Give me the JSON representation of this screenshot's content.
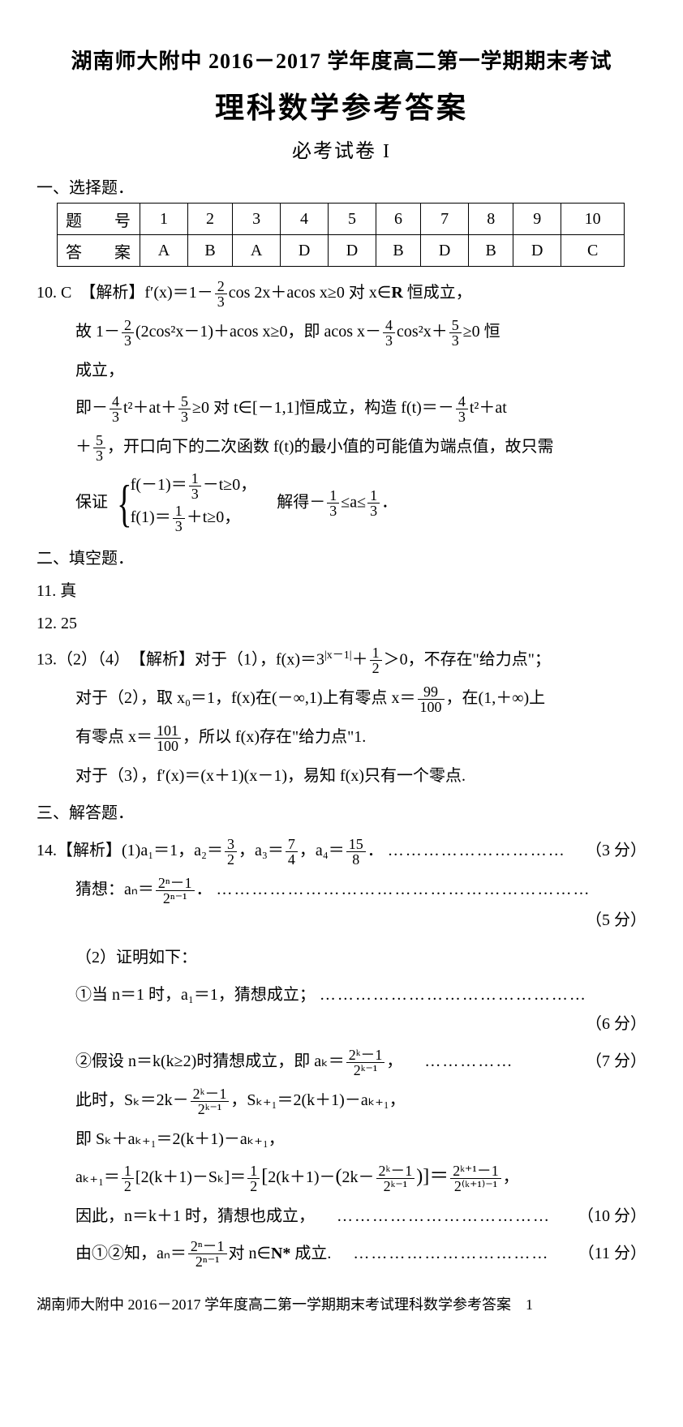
{
  "header": {
    "line1": "湖南师大附中 2016－2017 学年度高二第一学期期末考试",
    "line2": "理科数学参考答案",
    "line3": "必考试卷 I"
  },
  "sec1": {
    "title": "一、选择题．"
  },
  "table": {
    "head_label": "题　号",
    "ans_label": "答　案",
    "nums": [
      "1",
      "2",
      "3",
      "4",
      "5",
      "6",
      "7",
      "8",
      "9",
      "10"
    ],
    "answers": [
      "A",
      "B",
      "A",
      "D",
      "D",
      "B",
      "D",
      "B",
      "D",
      "C"
    ]
  },
  "q10": {
    "label": "10. C　【解析】",
    "l1a": "f′(x)＝1－",
    "f1n": "2",
    "f1d": "3",
    "l1b": "cos 2x＋acos x≥0 对 x∈",
    "l1c": "R",
    "l1d": " 恒成立，",
    "l2a": "故 1－",
    "f2n": "2",
    "f2d": "3",
    "l2b": "(2cos²x－1)＋acos x≥0，即 acos x－",
    "f3n": "4",
    "f3d": "3",
    "l2c": "cos²x＋",
    "f4n": "5",
    "f4d": "3",
    "l2d": "≥0 恒",
    "l2e": "成立，",
    "l3a": "即－",
    "f5n": "4",
    "f5d": "3",
    "l3b": "t²＋at＋",
    "f6n": "5",
    "f6d": "3",
    "l3c": "≥0 对 t∈[－1,1]恒成立，构造 f(t)＝－",
    "f7n": "4",
    "f7d": "3",
    "l3d": "t²＋at",
    "l4a": "＋",
    "f8n": "5",
    "f8d": "3",
    "l4b": "，开口向下的二次函数 f(t)的最小值的可能值为端点值，故只需",
    "l5a": "保证",
    "c1a": "f(－1)＝",
    "c1fn": "1",
    "c1fd": "3",
    "c1b": "－t≥0，",
    "c2a": "f(1)＝",
    "c2fn": "1",
    "c2fd": "3",
    "c2b": "＋t≥0，",
    "l5b": "　解得－",
    "f9n": "1",
    "f9d": "3",
    "l5c": "≤a≤",
    "f10n": "1",
    "f10d": "3",
    "l5d": "．"
  },
  "sec2": {
    "title": "二、填空题．"
  },
  "q11": "11. 真",
  "q12": "12. 25",
  "q13": {
    "label": "13.（2）（4）　【解析】",
    "l1a": "对于（1），f(x)＝3",
    "l1sup": "|x－1|",
    "l1b": "＋",
    "f1n": "1",
    "f1d": "2",
    "l1c": "＞0，不存在\"给力点\"；",
    "l2a": "对于（2），取 x₀＝1，f(x)在(－∞,1)上有零点 x＝",
    "f2n": "99",
    "f2d": "100",
    "l2b": "，在(1,＋∞)上",
    "l3a": "有零点 x＝",
    "f3n": "101",
    "f3d": "100",
    "l3b": "，所以 f(x)存在\"给力点\"1.",
    "l4": "对于（3），f′(x)＝(x＋1)(x－1)，易知 f(x)只有一个零点."
  },
  "sec3": {
    "title": "三、解答题．"
  },
  "q14": {
    "label": "14.【解析】",
    "l1a": "(1)a₁＝1，a₂＝",
    "f1n": "3",
    "f1d": "2",
    "l1b": "，a₃＝",
    "f2n": "7",
    "f2d": "4",
    "l1c": "，a₄＝",
    "f3n": "15",
    "f3d": "8",
    "l1d": "．",
    "s1": "（3 分）",
    "l2a": "猜想：aₙ＝",
    "f4n": "2ⁿ－1",
    "f4d": "2ⁿ⁻¹",
    "l2b": "．",
    "s2": "（5 分）",
    "l3": "（2）证明如下：",
    "l4": "①当 n＝1 时，a₁＝1，猜想成立；",
    "s4": "（6 分）",
    "l5a": "②假设 n＝k(k≥2)时猜想成立，即 aₖ＝",
    "f5n": "2ᵏ－1",
    "f5d": "2ᵏ⁻¹",
    "l5b": "，",
    "s5": "（7 分）",
    "l6a": "此时，Sₖ＝2k－",
    "f6n": "2ᵏ－1",
    "f6d": "2ᵏ⁻¹",
    "l6b": "，Sₖ₊₁＝2(k＋1)－aₖ₊₁，",
    "l7": "即 Sₖ＋aₖ₊₁＝2(k＋1)－aₖ₊₁，",
    "l8a": "aₖ₊₁＝",
    "f8an": "1",
    "f8ad": "2",
    "l8b": "[2(k＋1)－Sₖ]＝",
    "f8bn": "1",
    "f8bd": "2",
    "l8c": "[",
    "l8c2": "2(k＋1)－",
    "l8c3": "(",
    "l8c4": "2k－",
    "f8cn": "2ᵏ－1",
    "f8cd": "2ᵏ⁻¹",
    "l8c5": ")",
    "l8d": "]＝",
    "f8dn": "2ᵏ⁺¹－1",
    "f8dd": "2⁽ᵏ⁺¹⁾⁻¹",
    "l8e": "，",
    "l9": "因此，n＝k＋1 时，猜想也成立，",
    "s9": "（10 分）",
    "l10a": "由①②知，aₙ＝",
    "f10n": "2ⁿ－1",
    "f10d": "2ⁿ⁻¹",
    "l10b": "对 n∈",
    "l10c": "N*",
    "l10d": " 成立.",
    "s10": "（11 分）"
  },
  "footer": {
    "txt": "湖南师大附中 2016－2017 学年度高二第一学期期末考试理科数学参考答案　1"
  }
}
